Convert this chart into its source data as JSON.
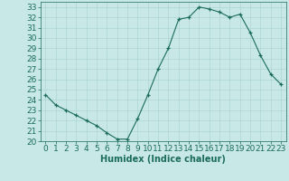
{
  "x": [
    0,
    1,
    2,
    3,
    4,
    5,
    6,
    7,
    8,
    9,
    10,
    11,
    12,
    13,
    14,
    15,
    16,
    17,
    18,
    19,
    20,
    21,
    22,
    23
  ],
  "y": [
    24.5,
    23.5,
    23.0,
    22.5,
    22.0,
    21.5,
    20.8,
    20.2,
    20.2,
    22.2,
    24.5,
    27.0,
    29.0,
    31.8,
    32.0,
    33.0,
    32.8,
    32.5,
    32.0,
    32.3,
    30.5,
    28.3,
    26.5,
    25.5
  ],
  "xlabel": "Humidex (Indice chaleur)",
  "ylim": [
    20,
    33.5
  ],
  "xlim": [
    -0.5,
    23.5
  ],
  "yticks": [
    20,
    21,
    22,
    23,
    24,
    25,
    26,
    27,
    28,
    29,
    30,
    31,
    32,
    33
  ],
  "xticks": [
    0,
    1,
    2,
    3,
    4,
    5,
    6,
    7,
    8,
    9,
    10,
    11,
    12,
    13,
    14,
    15,
    16,
    17,
    18,
    19,
    20,
    21,
    22,
    23
  ],
  "line_color": "#1a6b5a",
  "marker": "+",
  "bg_color": "#c8e8e8",
  "grid_color": "#aed4d4",
  "label_color": "#1a6b5a",
  "xlabel_fontsize": 7,
  "tick_fontsize": 6.5
}
